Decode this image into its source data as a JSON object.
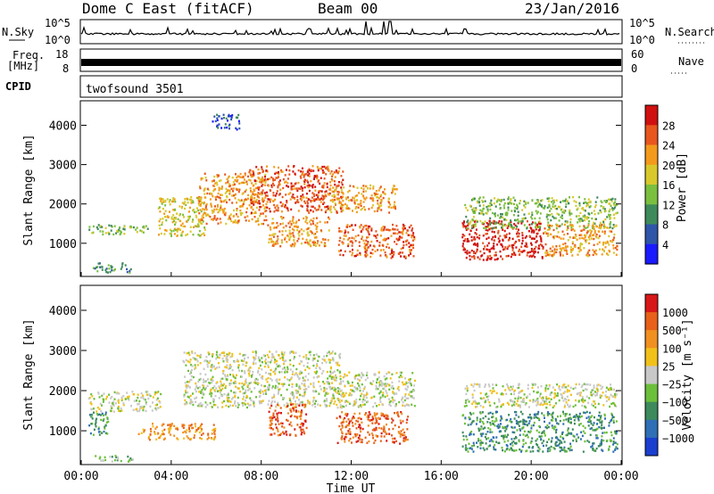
{
  "header": {
    "radar": "Dome C East (fitACF)",
    "beam": "Beam 00",
    "date": "23/Jan/2016"
  },
  "nsky_panel": {
    "left_label": "N.Sky",
    "right_label": "N.Search",
    "left_ticks": [
      "10^5",
      "10^0"
    ],
    "right_ticks": [
      "10^5",
      "10^0"
    ]
  },
  "freq_panel": {
    "left_label_1": "Freq.",
    "left_label_2": "[MHz]",
    "right_label": "Nave",
    "left_ticks": [
      "18",
      "8"
    ],
    "right_ticks": [
      "60",
      "0"
    ]
  },
  "cpid_panel": {
    "label": "CPID",
    "program": "twofsound 3501"
  },
  "x_axis": {
    "title": "Time UT",
    "ticks": [
      "00:00",
      "04:00",
      "08:00",
      "12:00",
      "16:00",
      "20:00",
      "00:00"
    ]
  },
  "chart_data": [
    {
      "type": "heatmap",
      "title": "",
      "xlabel": "Time UT",
      "ylabel": "Slant Range [km]",
      "x_range_hours": [
        0,
        24
      ],
      "y_range_km": [
        180,
        4600
      ],
      "y_ticks": [
        "1000",
        "2000",
        "3000",
        "4000"
      ],
      "colorbar": {
        "label": "Power [dB]",
        "ticks": [
          "4",
          "8",
          "12",
          "16",
          "20",
          "24",
          "28"
        ],
        "colors": [
          "#1a1aff",
          "#2f55a8",
          "#3f8a5a",
          "#7bbf3f",
          "#d8c82c",
          "#f39a1c",
          "#e8561e",
          "#d01010"
        ]
      },
      "echo_regions": [
        {
          "t0": 0.3,
          "t1": 3.0,
          "r0": 1250,
          "r1": 1500,
          "level": 3
        },
        {
          "t0": 0.5,
          "t1": 2.2,
          "r0": 280,
          "r1": 520,
          "level": 2
        },
        {
          "t0": 3.4,
          "t1": 5.5,
          "r0": 1200,
          "r1": 2200,
          "level": 4
        },
        {
          "t0": 5.2,
          "t1": 8.2,
          "r0": 1500,
          "r1": 2800,
          "level": 5
        },
        {
          "t0": 7.4,
          "t1": 11.6,
          "r0": 1800,
          "r1": 3000,
          "level": 6
        },
        {
          "t0": 8.2,
          "t1": 11.0,
          "r0": 950,
          "r1": 1700,
          "level": 5
        },
        {
          "t0": 11.4,
          "t1": 14.8,
          "r0": 650,
          "r1": 1500,
          "level": 6
        },
        {
          "t0": 11.0,
          "t1": 14.0,
          "r0": 1800,
          "r1": 2500,
          "level": 5
        },
        {
          "t0": 5.8,
          "t1": 7.0,
          "r0": 3900,
          "r1": 4300,
          "level": 1
        },
        {
          "t0": 16.9,
          "t1": 20.5,
          "r0": 600,
          "r1": 1600,
          "level": 7
        },
        {
          "t0": 17.0,
          "t1": 23.8,
          "r0": 1400,
          "r1": 2200,
          "level": 3
        },
        {
          "t0": 20.5,
          "t1": 23.8,
          "r0": 700,
          "r1": 1500,
          "level": 5
        }
      ]
    },
    {
      "type": "heatmap",
      "title": "",
      "xlabel": "Time UT",
      "ylabel": "Slant Range [km]",
      "x_range_hours": [
        0,
        24
      ],
      "y_range_km": [
        180,
        4600
      ],
      "y_ticks": [
        "1000",
        "2000",
        "3000",
        "4000"
      ],
      "colorbar": {
        "label": "Velocity [m s⁻¹]",
        "ticks": [
          "1000",
          "500",
          "100",
          "25",
          "−25",
          "−100",
          "−500",
          "−1000"
        ],
        "colors": [
          "#1a3fcf",
          "#2f6fb5",
          "#3d8a5c",
          "#6cbf3a",
          "#c8c8c8",
          "#f1c11a",
          "#f09020",
          "#e8601a",
          "#d81818"
        ]
      },
      "echo_regions": [
        {
          "t0": 0.3,
          "t1": 3.5,
          "r0": 1500,
          "r1": 2000,
          "level": 4
        },
        {
          "t0": 0.3,
          "t1": 1.2,
          "r0": 900,
          "r1": 1500,
          "level": 2
        },
        {
          "t0": 0.5,
          "t1": 2.5,
          "r0": 250,
          "r1": 400,
          "level": 3
        },
        {
          "t0": 2.5,
          "t1": 6.0,
          "r0": 800,
          "r1": 1200,
          "level": 6
        },
        {
          "t0": 4.5,
          "t1": 11.5,
          "r0": 1600,
          "r1": 3000,
          "level": 4
        },
        {
          "t0": 8.3,
          "t1": 10.0,
          "r0": 900,
          "r1": 1700,
          "level": 7
        },
        {
          "t0": 11.3,
          "t1": 14.5,
          "r0": 700,
          "r1": 1500,
          "level": 7
        },
        {
          "t0": 11.0,
          "t1": 14.8,
          "r0": 1600,
          "r1": 2500,
          "level": 4
        },
        {
          "t0": 16.9,
          "t1": 23.8,
          "r0": 500,
          "r1": 1500,
          "level": 2
        },
        {
          "t0": 17.0,
          "t1": 23.8,
          "r0": 1600,
          "r1": 2200,
          "level": 4
        }
      ]
    }
  ]
}
